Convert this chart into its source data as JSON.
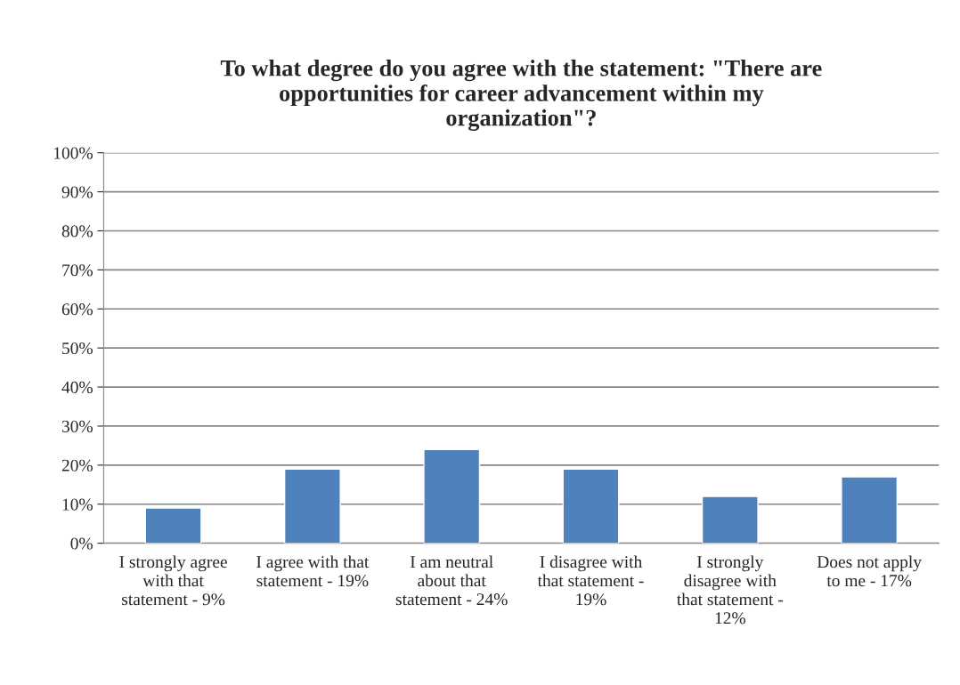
{
  "chart_data": {
    "type": "bar",
    "title": "To what degree do you agree with the statement: \"There are\nopportunities for career advancement within my\norganization\"?",
    "categories": [
      "I strongly agree\nwith that\nstatement - 9%",
      "I agree with that\nstatement - 19%",
      "I am neutral\nabout that\nstatement - 24%",
      "I disagree with\nthat statement -\n19%",
      "I strongly\ndisagree with\nthat statement -\n12%",
      "Does not apply\nto me - 17%"
    ],
    "values": [
      9,
      19,
      24,
      19,
      12,
      17
    ],
    "color": "#4f81bd",
    "ylim": [
      0,
      100
    ],
    "yticks": [
      {
        "value": 0,
        "label": "0%"
      },
      {
        "value": 10,
        "label": "10%"
      },
      {
        "value": 20,
        "label": "20%"
      },
      {
        "value": 30,
        "label": "30%"
      },
      {
        "value": 40,
        "label": "40%"
      },
      {
        "value": 50,
        "label": "50%"
      },
      {
        "value": 60,
        "label": "60%"
      },
      {
        "value": 70,
        "label": "70%"
      },
      {
        "value": 80,
        "label": "80%"
      },
      {
        "value": 90,
        "label": "90%"
      },
      {
        "value": 100,
        "label": "100%"
      }
    ],
    "grid": "y"
  }
}
